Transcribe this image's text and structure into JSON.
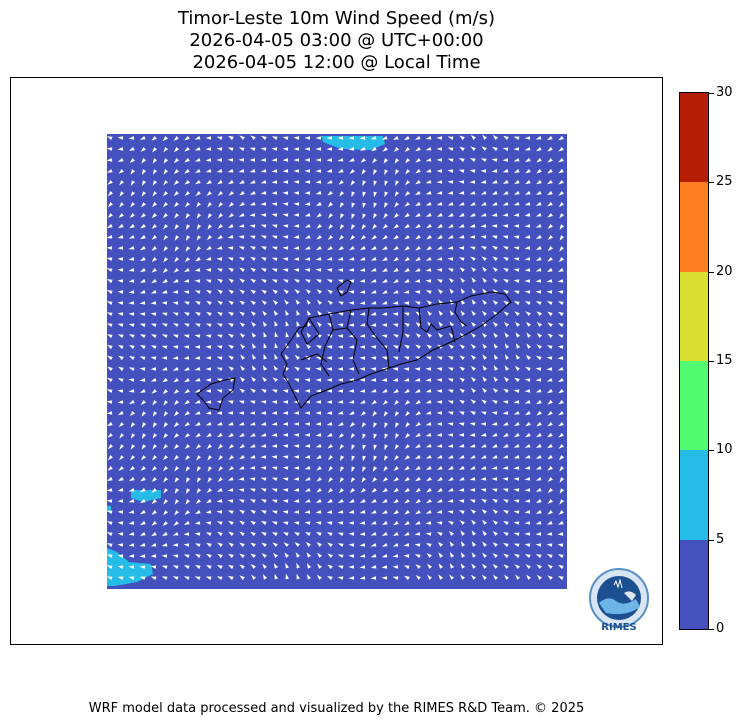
{
  "titles": {
    "line1": "Timor-Leste 10m Wind Speed (m/s)",
    "line2": "2026-04-05 03:00 @ UTC+00:00",
    "line3": "2026-04-05 12:00 @ Local Time"
  },
  "colorbar": {
    "ticks": [
      "0",
      "5",
      "10",
      "15",
      "20",
      "25",
      "30"
    ],
    "bins": [
      {
        "min": 0,
        "max": 5,
        "color": "#4350bd"
      },
      {
        "min": 5,
        "max": 10,
        "color": "#25bde8"
      },
      {
        "min": 10,
        "max": 15,
        "color": "#52fb6f"
      },
      {
        "min": 15,
        "max": 20,
        "color": "#d9e032"
      },
      {
        "min": 20,
        "max": 25,
        "color": "#fe7f22"
      },
      {
        "min": 25,
        "max": 30,
        "color": "#b51e04"
      }
    ]
  },
  "map": {
    "field_color": "#4350bd",
    "high_wind_color": "#25bde8",
    "arrow_color": "#ffffff",
    "border_color": "#000000"
  },
  "logo": {
    "text": "RIMES"
  },
  "footer": "WRF model data processed and visualized by the RIMES R&D Team. © 2025"
}
